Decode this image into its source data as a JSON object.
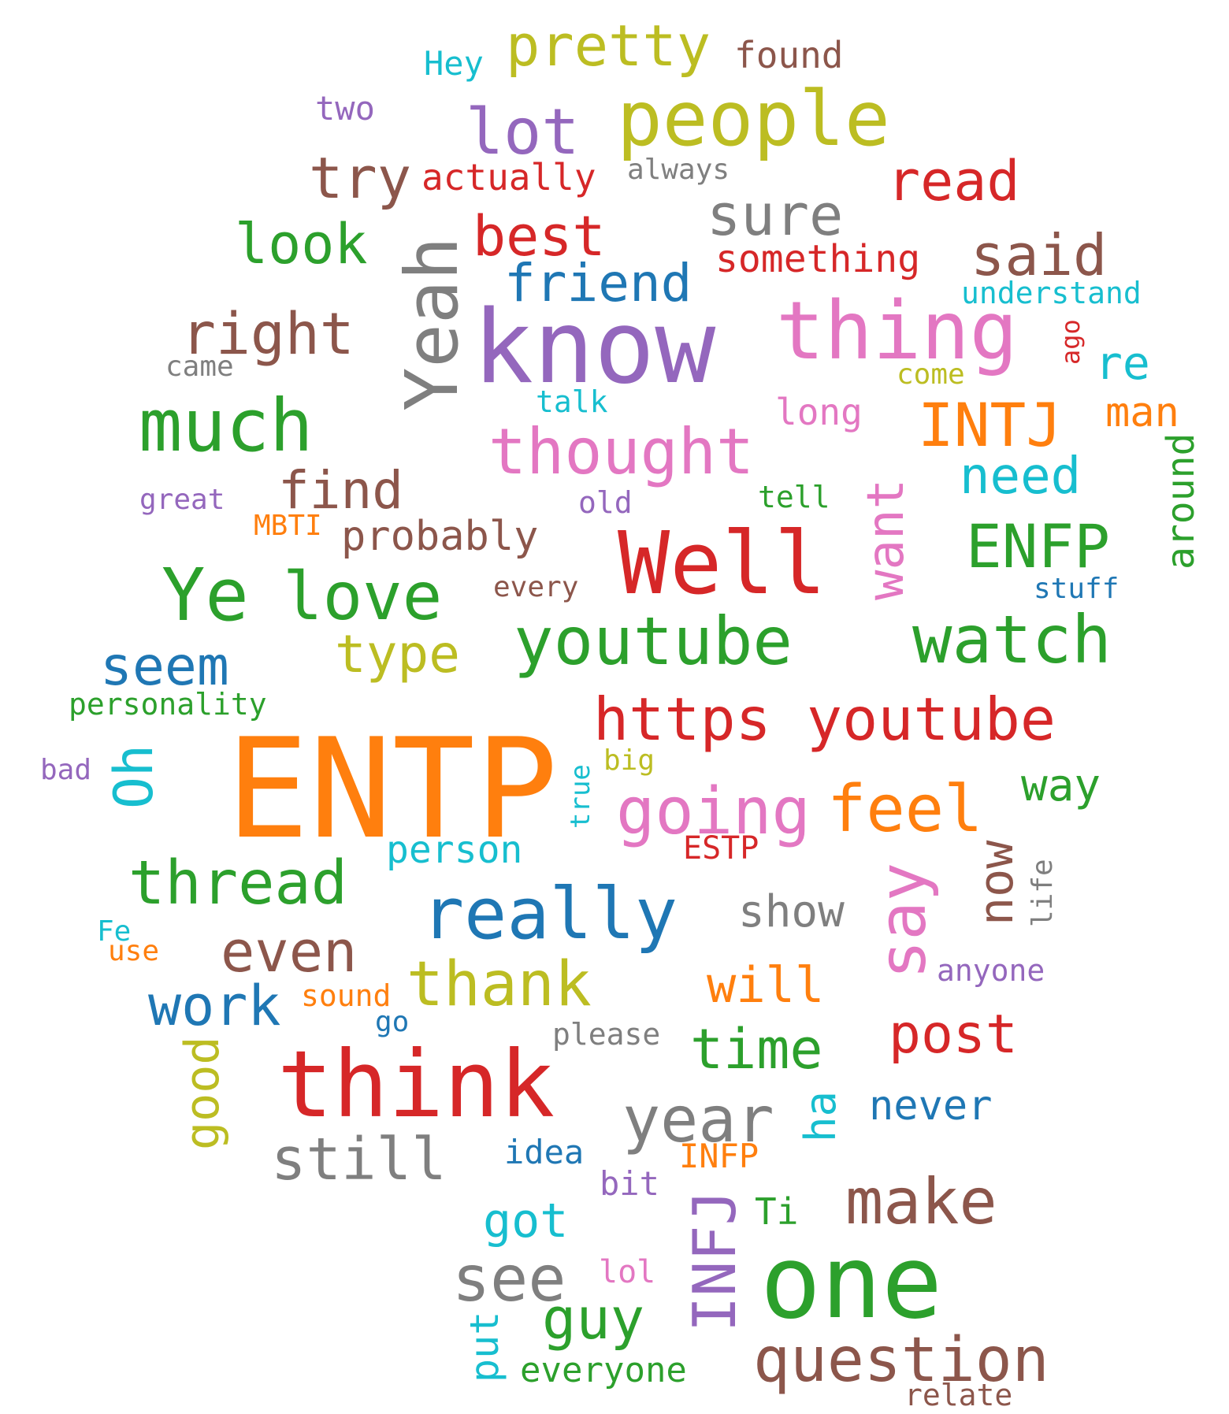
{
  "palette": {
    "blue": "#1f77b4",
    "orange": "#ff7f0e",
    "green": "#2ca02c",
    "red": "#d62728",
    "purple": "#9467bd",
    "brown": "#8c564b",
    "pink": "#e377c2",
    "gray": "#7f7f7f",
    "olive": "#bcbd22",
    "cyan": "#17becf"
  },
  "words": [
    {
      "text": "ENTP",
      "color": "orange"
    },
    {
      "text": "know",
      "color": "purple"
    },
    {
      "text": "one",
      "color": "green"
    },
    {
      "text": "think",
      "color": "red"
    },
    {
      "text": "Well",
      "color": "red"
    },
    {
      "text": "thing",
      "color": "pink"
    },
    {
      "text": "people",
      "color": "olive"
    },
    {
      "text": "much",
      "color": "green"
    },
    {
      "text": "youtube",
      "color": "green"
    },
    {
      "text": "watch",
      "color": "green"
    },
    {
      "text": "https youtube",
      "color": "red"
    },
    {
      "text": "Yeah",
      "color": "gray"
    },
    {
      "text": "Ye",
      "color": "green"
    },
    {
      "text": "love",
      "color": "green"
    },
    {
      "text": "really",
      "color": "blue"
    },
    {
      "text": "going",
      "color": "pink"
    },
    {
      "text": "feel",
      "color": "orange"
    },
    {
      "text": "thought",
      "color": "pink"
    },
    {
      "text": "lot",
      "color": "purple"
    },
    {
      "text": "pretty",
      "color": "olive"
    },
    {
      "text": "make",
      "color": "brown"
    },
    {
      "text": "question",
      "color": "brown"
    },
    {
      "text": "year",
      "color": "gray"
    },
    {
      "text": "see",
      "color": "gray"
    },
    {
      "text": "thank",
      "color": "olive"
    },
    {
      "text": "thread",
      "color": "green"
    },
    {
      "text": "INTJ",
      "color": "orange"
    },
    {
      "text": "ENFP",
      "color": "green"
    },
    {
      "text": "say",
      "color": "pink"
    },
    {
      "text": "right",
      "color": "brown"
    },
    {
      "text": "still",
      "color": "gray"
    },
    {
      "text": "time",
      "color": "green"
    },
    {
      "text": "try",
      "color": "brown"
    },
    {
      "text": "said",
      "color": "brown"
    },
    {
      "text": "sure",
      "color": "gray"
    },
    {
      "text": "read",
      "color": "red"
    },
    {
      "text": "best",
      "color": "red"
    },
    {
      "text": "look",
      "color": "green"
    },
    {
      "text": "friend",
      "color": "blue"
    },
    {
      "text": "find",
      "color": "brown"
    },
    {
      "text": "even",
      "color": "brown"
    },
    {
      "text": "work",
      "color": "blue"
    },
    {
      "text": "post",
      "color": "red"
    },
    {
      "text": "guy",
      "color": "green"
    },
    {
      "text": "INFJ",
      "color": "purple"
    },
    {
      "text": "Oh",
      "color": "cyan"
    },
    {
      "text": "seem",
      "color": "blue"
    },
    {
      "text": "type",
      "color": "olive"
    },
    {
      "text": "need",
      "color": "cyan"
    },
    {
      "text": "want",
      "color": "pink"
    },
    {
      "text": "now",
      "color": "brown"
    },
    {
      "text": "good",
      "color": "olive"
    },
    {
      "text": "will",
      "color": "orange"
    },
    {
      "text": "probably",
      "color": "brown"
    },
    {
      "text": "show",
      "color": "gray"
    },
    {
      "text": "way",
      "color": "green"
    },
    {
      "text": "got",
      "color": "cyan"
    },
    {
      "text": "never",
      "color": "blue"
    },
    {
      "text": "ha",
      "color": "cyan"
    },
    {
      "text": "around",
      "color": "green"
    },
    {
      "text": "re",
      "color": "cyan"
    },
    {
      "text": "person",
      "color": "cyan"
    },
    {
      "text": "put",
      "color": "cyan"
    },
    {
      "text": "man",
      "color": "orange"
    },
    {
      "text": "something",
      "color": "red"
    },
    {
      "text": "actually",
      "color": "red"
    },
    {
      "text": "found",
      "color": "brown"
    },
    {
      "text": "long",
      "color": "pink"
    },
    {
      "text": "everyone",
      "color": "green"
    },
    {
      "text": "idea",
      "color": "blue"
    },
    {
      "text": "INFP",
      "color": "orange"
    },
    {
      "text": "Hey",
      "color": "cyan"
    },
    {
      "text": "two",
      "color": "purple"
    },
    {
      "text": "understand",
      "color": "cyan"
    },
    {
      "text": "personality",
      "color": "green"
    },
    {
      "text": "ESTP",
      "color": "red"
    },
    {
      "text": "sound",
      "color": "orange"
    },
    {
      "text": "anyone",
      "color": "purple"
    },
    {
      "text": "please",
      "color": "gray"
    },
    {
      "text": "relate",
      "color": "brown"
    },
    {
      "text": "Ti",
      "color": "green"
    },
    {
      "text": "bit",
      "color": "purple"
    },
    {
      "text": "lol",
      "color": "pink"
    },
    {
      "text": "always",
      "color": "gray"
    },
    {
      "text": "came",
      "color": "gray"
    },
    {
      "text": "come",
      "color": "olive"
    },
    {
      "text": "ago",
      "color": "red"
    },
    {
      "text": "talk",
      "color": "cyan"
    },
    {
      "text": "great",
      "color": "purple"
    },
    {
      "text": "MBTI",
      "color": "orange"
    },
    {
      "text": "old",
      "color": "purple"
    },
    {
      "text": "tell",
      "color": "green"
    },
    {
      "text": "every",
      "color": "brown"
    },
    {
      "text": "stuff",
      "color": "blue"
    },
    {
      "text": "bad",
      "color": "purple"
    },
    {
      "text": "big",
      "color": "olive"
    },
    {
      "text": "true",
      "color": "cyan"
    },
    {
      "text": "life",
      "color": "gray"
    },
    {
      "text": "Fe",
      "color": "cyan"
    },
    {
      "text": "use",
      "color": "orange"
    },
    {
      "text": "go",
      "color": "blue"
    }
  ]
}
